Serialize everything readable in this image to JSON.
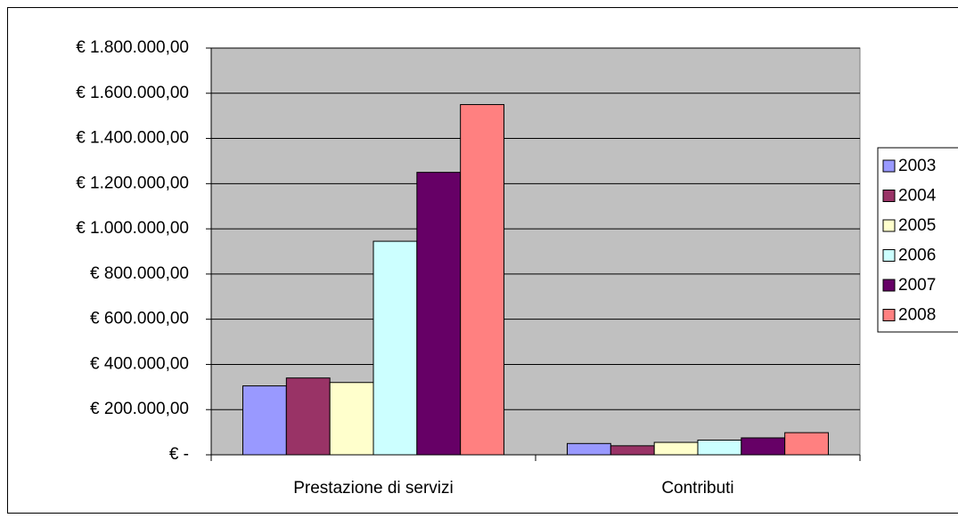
{
  "chart_data": {
    "type": "bar",
    "categories": [
      "Prestazione di servizi",
      "Contributi"
    ],
    "series": [
      {
        "name": "2003",
        "color": "#9999ff",
        "values": [
          305000,
          50000
        ]
      },
      {
        "name": "2004",
        "color": "#993366",
        "values": [
          340000,
          40000
        ]
      },
      {
        "name": "2005",
        "color": "#ffffcc",
        "values": [
          320000,
          55000
        ]
      },
      {
        "name": "2006",
        "color": "#ccffff",
        "values": [
          945000,
          65000
        ]
      },
      {
        "name": "2007",
        "color": "#660066",
        "values": [
          1250000,
          75000
        ]
      },
      {
        "name": "2008",
        "color": "#ff8080",
        "values": [
          1550000,
          98000
        ]
      }
    ],
    "ylim": [
      0,
      1800000
    ],
    "yticks": [
      {
        "value": 0,
        "label": "€ -"
      },
      {
        "value": 200000,
        "label": "€ 200.000,00"
      },
      {
        "value": 400000,
        "label": "€ 400.000,00"
      },
      {
        "value": 600000,
        "label": "€ 600.000,00"
      },
      {
        "value": 800000,
        "label": "€ 800.000,00"
      },
      {
        "value": 1000000,
        "label": "€ 1.000.000,00"
      },
      {
        "value": 1200000,
        "label": "€ 1.200.000,00"
      },
      {
        "value": 1400000,
        "label": "€ 1.400.000,00"
      },
      {
        "value": 1600000,
        "label": "€ 1.600.000,00"
      },
      {
        "value": 1800000,
        "label": "€ 1.800.000,00"
      }
    ],
    "grid": true,
    "legend": "right",
    "plot_background": "#c0c0c0"
  }
}
